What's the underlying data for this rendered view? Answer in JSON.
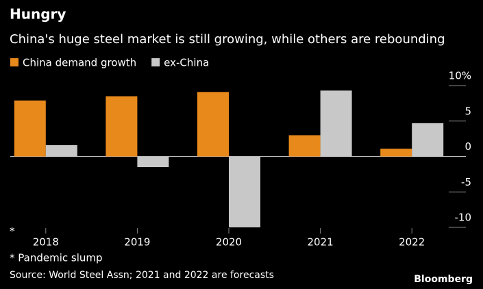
{
  "chart_data": {
    "type": "bar",
    "title": "Hungry",
    "subtitle": "China's huge steel market is still growing, while others are rebounding",
    "categories": [
      "2018",
      "2019",
      "2020",
      "2021",
      "2022"
    ],
    "series": [
      {
        "name": "China demand growth",
        "color": "#e8891c",
        "values": [
          7.9,
          8.5,
          9.1,
          3.0,
          1.1
        ]
      },
      {
        "name": "ex-China",
        "color": "#c8c8c8",
        "values": [
          1.6,
          -1.5,
          -10.0,
          9.3,
          4.7
        ]
      }
    ],
    "ylim": [
      -10,
      10
    ],
    "yticks": [
      {
        "value": 10,
        "label": "10%"
      },
      5,
      0,
      -5,
      -10
    ],
    "annotation": "*",
    "footnote": "* Pandemic slump",
    "source": "Source: World Steel Assn; 2021 and 2022 are forecasts",
    "brand": "Bloomberg"
  }
}
